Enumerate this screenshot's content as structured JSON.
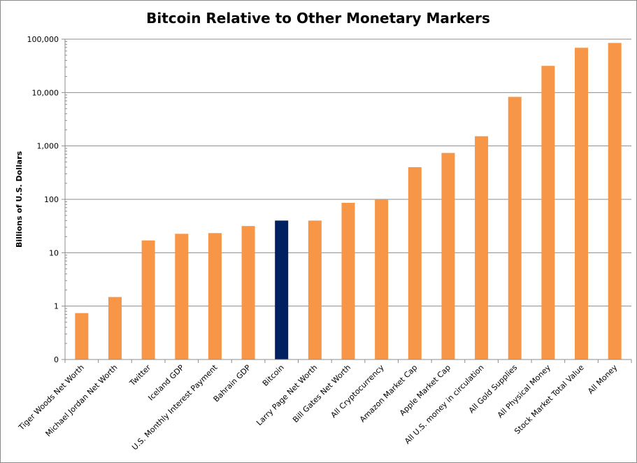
{
  "chart_data": {
    "type": "bar",
    "title": "Bitcoin Relative to Other Monetary Markers",
    "xlabel": "",
    "ylabel": "Billions of U.S. Dollars",
    "yscale": "log",
    "ylim": [
      0.1,
      100000
    ],
    "yticks": [
      0.1,
      1,
      10,
      100,
      1000,
      10000,
      100000
    ],
    "ytick_labels": [
      "0",
      "1",
      "10",
      "100",
      "1,000",
      "10,000",
      "100,000"
    ],
    "grid": true,
    "categories": [
      "Tiger Woods Net Worth",
      "Michael Jordan Net Worth",
      "Twitter",
      "Iceland GDP",
      "U.S. Monthly Interest Payment",
      "Bahrain GDP",
      "Bitcoin",
      "Larry Page Net Worth",
      "Bill Gates Net Worth",
      "All Cryptocurrency",
      "Amazon Market Cap",
      "Apple Market Cap",
      "All U.S. money in circulation",
      "All Gold Supplies",
      "All Physical Money",
      "Stock Market Total Value",
      "All Money"
    ],
    "values": [
      0.74,
      1.48,
      17,
      22.6,
      23.3,
      31.6,
      40,
      40,
      86,
      98,
      400,
      740,
      1520,
      8300,
      31600,
      69000,
      85000
    ],
    "colors": {
      "default": "#F79646",
      "highlight": "#002060"
    },
    "highlight_category": "Bitcoin"
  }
}
